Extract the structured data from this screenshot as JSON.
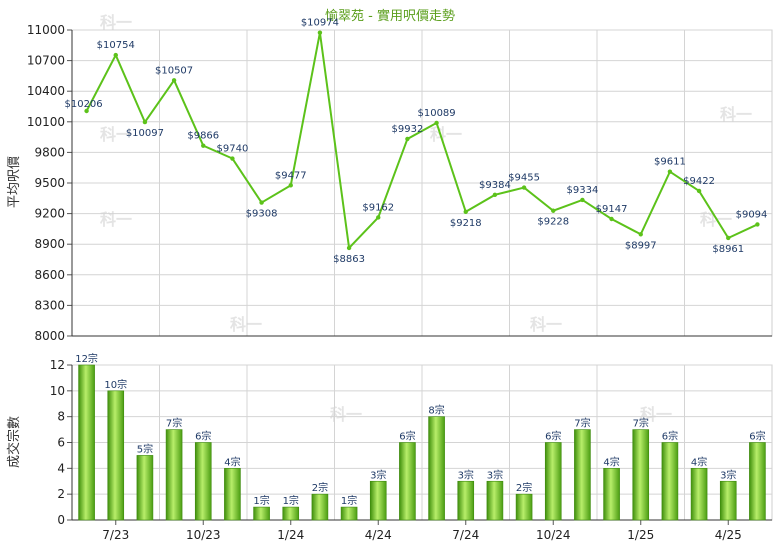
{
  "watermark": "科一",
  "chart_data": [
    {
      "type": "line",
      "title": "愉翠苑 - 實用呎價走勢",
      "ylabel": "平均呎價",
      "ylim": [
        8000,
        11000
      ],
      "yticks": [
        8000,
        8300,
        8600,
        8900,
        9200,
        9500,
        9800,
        10100,
        10400,
        10700,
        11000
      ],
      "grid": true,
      "color": "#5cc21a",
      "values": [
        10206,
        10754,
        10097,
        10507,
        9866,
        9740,
        9308,
        9477,
        10974,
        8863,
        9162,
        9932,
        10089,
        9218,
        9384,
        9455,
        9228,
        9334,
        9147,
        8997,
        9611,
        9422,
        8961,
        9094
      ],
      "labels": [
        "$10206",
        "$10754",
        "$10097",
        "$10507",
        "$9866",
        "$9740",
        "$9308",
        "$9477",
        "$10974",
        "$8863",
        "$9162",
        "$9932",
        "$10089",
        "$9218",
        "$9384",
        "$9455",
        "$9228",
        "$9334",
        "$9147",
        "$8997",
        "$9611",
        "$9422",
        "$8961",
        "$9094"
      ]
    },
    {
      "type": "bar",
      "ylabel": "成交宗數",
      "ylim": [
        0,
        12
      ],
      "yticks": [
        0,
        2,
        4,
        6,
        8,
        10,
        12
      ],
      "grid": true,
      "color": "#6cc21e",
      "categories": [
        "",
        "7/23",
        "",
        "",
        "10/23",
        "",
        "",
        "1/24",
        "",
        "",
        "4/24",
        "",
        "",
        "7/24",
        "",
        "",
        "10/24",
        "",
        "",
        "1/25",
        "",
        "",
        "4/25",
        ""
      ],
      "x_tick_labels": [
        "7/23",
        "10/23",
        "1/24",
        "4/24",
        "7/24",
        "10/24",
        "1/25",
        "4/25"
      ],
      "values": [
        12,
        10,
        5,
        7,
        6,
        4,
        1,
        1,
        2,
        1,
        3,
        6,
        8,
        3,
        3,
        2,
        6,
        7,
        4,
        7,
        6,
        4,
        3,
        6
      ],
      "labels": [
        "12宗",
        "10宗",
        "5宗",
        "7宗",
        "6宗",
        "4宗",
        "1宗",
        "1宗",
        "2宗",
        "1宗",
        "3宗",
        "6宗",
        "8宗",
        "3宗",
        "3宗",
        "2宗",
        "6宗",
        "7宗",
        "4宗",
        "7宗",
        "6宗",
        "4宗",
        "3宗",
        "6宗"
      ]
    }
  ]
}
